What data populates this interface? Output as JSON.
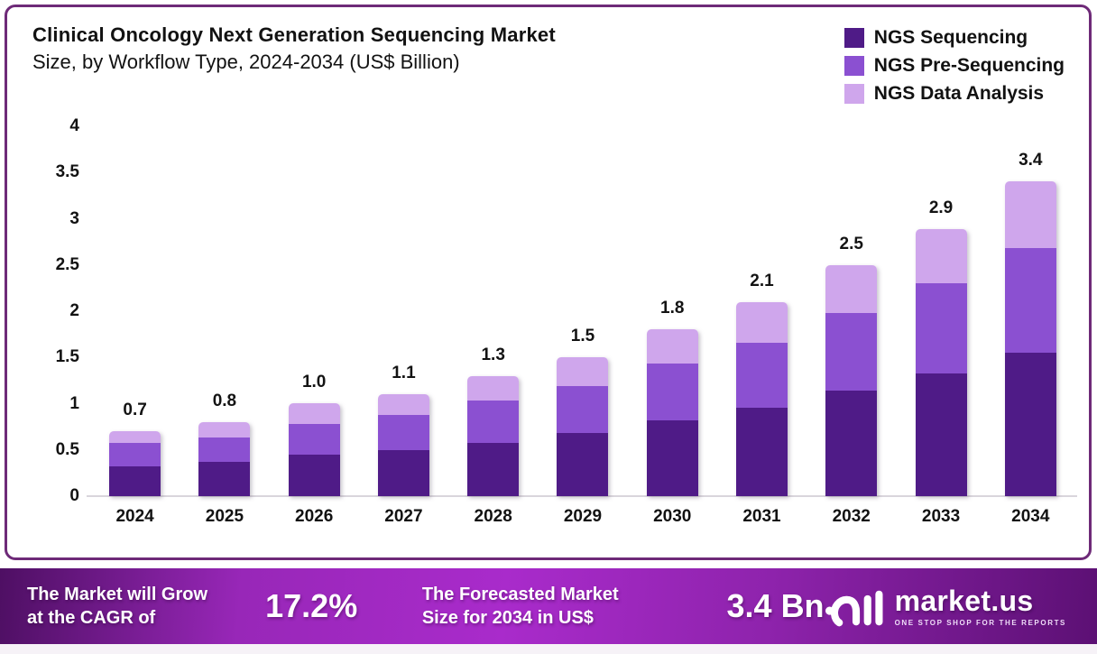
{
  "title": {
    "line1": "Clinical Oncology Next Generation Sequencing Market",
    "line2": "Size, by Workflow Type, 2024-2034 (US$ Billion)"
  },
  "legend": {
    "items": [
      {
        "label": "NGS Sequencing",
        "color": "#4F1B87"
      },
      {
        "label": "NGS Pre-Sequencing",
        "color": "#8B50D1"
      },
      {
        "label": "NGS Data Analysis",
        "color": "#CFA6EC"
      }
    ]
  },
  "chart_data": {
    "type": "bar",
    "stacked": true,
    "title": "Clinical Oncology Next Generation Sequencing Market Size, by Workflow Type, 2024-2034 (US$ Billion)",
    "unit": "US$ Billion",
    "categories": [
      "2024",
      "2025",
      "2026",
      "2027",
      "2028",
      "2029",
      "2030",
      "2031",
      "2032",
      "2033",
      "2034"
    ],
    "series": [
      {
        "name": "NGS Sequencing",
        "color": "#4F1B87",
        "values": [
          0.32,
          0.37,
          0.45,
          0.5,
          0.58,
          0.68,
          0.82,
          0.96,
          1.14,
          1.33,
          1.55
        ]
      },
      {
        "name": "NGS Pre-Sequencing",
        "color": "#8B50D1",
        "values": [
          0.25,
          0.26,
          0.33,
          0.38,
          0.46,
          0.51,
          0.61,
          0.7,
          0.84,
          0.98,
          1.13
        ]
      },
      {
        "name": "NGS Data Analysis",
        "color": "#CFA6EC",
        "values": [
          0.13,
          0.17,
          0.22,
          0.22,
          0.26,
          0.31,
          0.37,
          0.44,
          0.52,
          0.59,
          0.72
        ]
      }
    ],
    "totals_labels": [
      "0.7",
      "0.8",
      "1.0",
      "1.1",
      "1.3",
      "1.5",
      "1.8",
      "2.1",
      "2.5",
      "2.9",
      "3.4"
    ],
    "y_ticks": [
      "0",
      "0.5",
      "1",
      "1.5",
      "2",
      "2.5",
      "3",
      "3.5",
      "4"
    ],
    "ylim": [
      0,
      4
    ],
    "grid": false,
    "legend_position": "top-right"
  },
  "banner": {
    "cagr": {
      "label_line1": "The Market will Grow",
      "label_line2": "at the CAGR of",
      "value": "17.2%"
    },
    "forecast": {
      "label_line1": "The Forecasted Market",
      "label_line2": "Size for 2034 in US$",
      "value": "3.4 Bn"
    },
    "logo": {
      "name": "market.us",
      "tagline": "ONE STOP SHOP FOR THE REPORTS"
    }
  }
}
